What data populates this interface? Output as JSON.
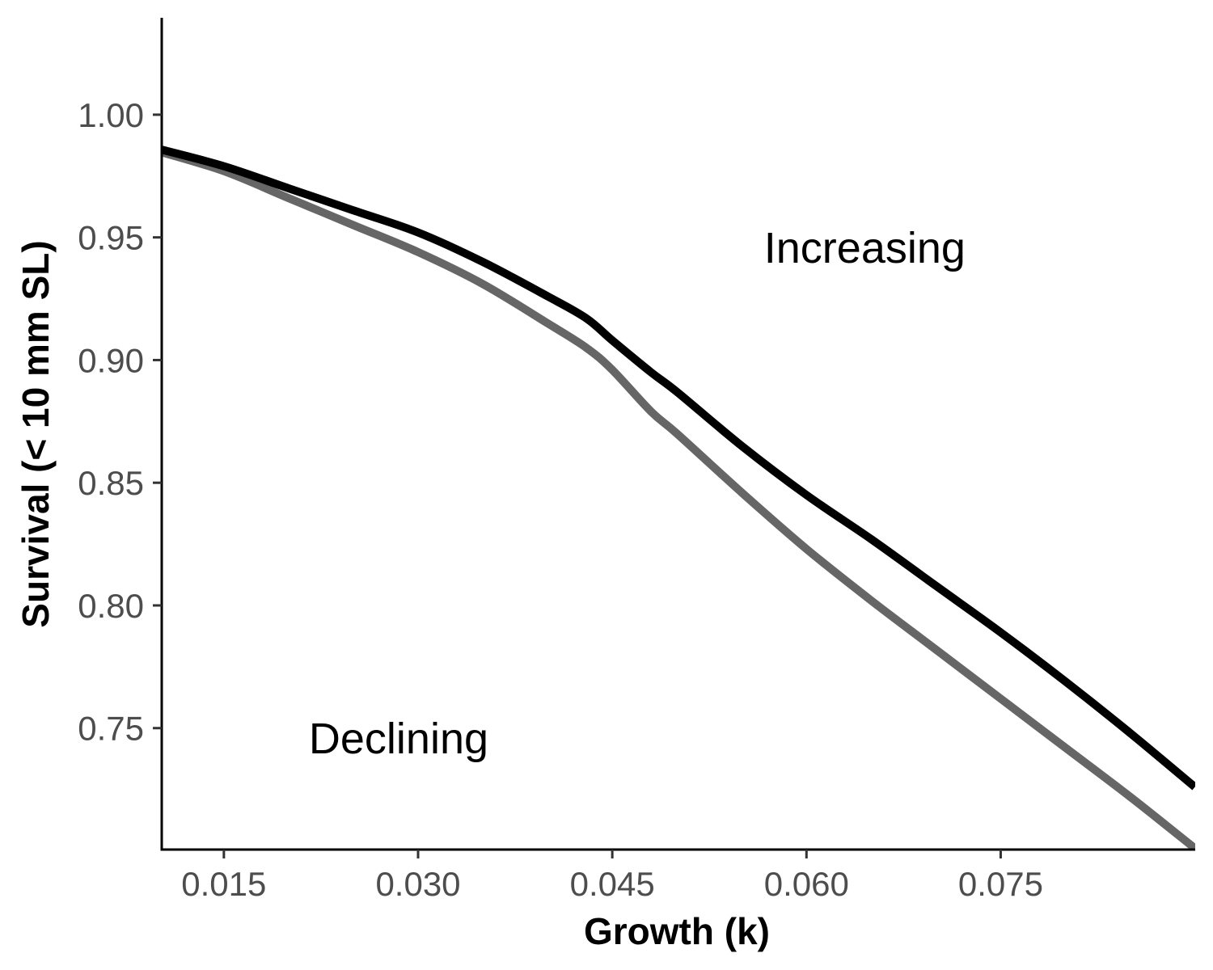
{
  "chart_data": {
    "type": "line",
    "title": "",
    "xlabel": "Growth (k)",
    "ylabel": "Survival (< 10 mm SL)",
    "xlim": [
      0.0102,
      0.0899
    ],
    "ylim": [
      0.7005,
      1.0395
    ],
    "x_ticks": [
      {
        "value": 0.015,
        "label": "0.015"
      },
      {
        "value": 0.03,
        "label": "0.030"
      },
      {
        "value": 0.045,
        "label": "0.045"
      },
      {
        "value": 0.06,
        "label": "0.060"
      },
      {
        "value": 0.075,
        "label": "0.075"
      }
    ],
    "y_ticks": [
      {
        "value": 0.75,
        "label": "0.75"
      },
      {
        "value": 0.8,
        "label": "0.80"
      },
      {
        "value": 0.85,
        "label": "0.85"
      },
      {
        "value": 0.9,
        "label": "0.90"
      },
      {
        "value": 0.95,
        "label": "0.95"
      },
      {
        "value": 1.0,
        "label": "1.00"
      }
    ],
    "grid": false,
    "legend": "none",
    "series": [
      {
        "name": "Increasing",
        "color": "#000000",
        "x": [
          0.01,
          0.015,
          0.02,
          0.025,
          0.03,
          0.035,
          0.04,
          0.043,
          0.045,
          0.048,
          0.05,
          0.055,
          0.06,
          0.065,
          0.07,
          0.075,
          0.08,
          0.085,
          0.09
        ],
        "y": [
          0.986,
          0.979,
          0.97,
          0.961,
          0.952,
          0.94,
          0.926,
          0.917,
          0.908,
          0.895,
          0.887,
          0.865,
          0.845,
          0.827,
          0.808,
          0.789,
          0.769,
          0.748,
          0.726
        ]
      },
      {
        "name": "Declining",
        "color": "#666666",
        "x": [
          0.01,
          0.015,
          0.02,
          0.025,
          0.03,
          0.035,
          0.04,
          0.043,
          0.045,
          0.048,
          0.05,
          0.055,
          0.06,
          0.065,
          0.07,
          0.075,
          0.08,
          0.085,
          0.09
        ],
        "y": [
          0.985,
          0.977,
          0.966,
          0.955,
          0.944,
          0.931,
          0.915,
          0.905,
          0.896,
          0.879,
          0.87,
          0.846,
          0.823,
          0.802,
          0.782,
          0.762,
          0.742,
          0.722,
          0.701
        ]
      }
    ],
    "annotations": [
      {
        "text": "Increasing",
        "x": 0.0645,
        "y": 0.946
      },
      {
        "text": "Declining",
        "x": 0.0285,
        "y": 0.746
      }
    ]
  }
}
